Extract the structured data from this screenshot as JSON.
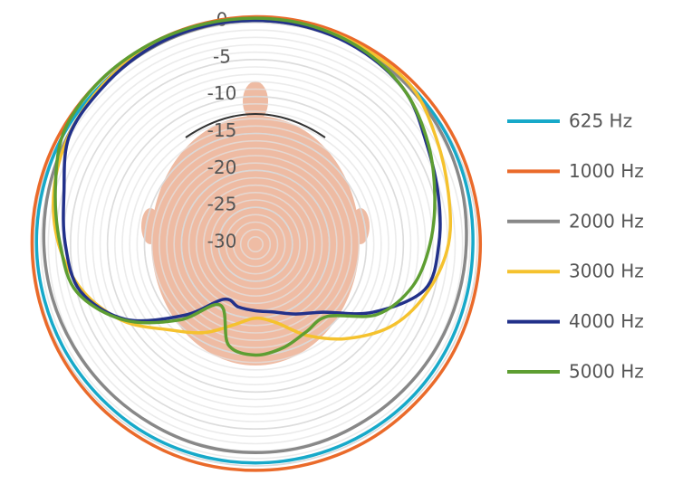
{
  "chart_data": {
    "type": "polar",
    "theta": [
      0,
      15,
      30,
      45,
      60,
      75,
      90,
      105,
      120,
      135,
      150,
      165,
      180,
      195,
      210,
      225,
      240,
      255,
      270,
      285,
      300,
      315,
      330,
      345
    ],
    "rlim": [
      -30,
      0
    ],
    "rticks": [
      0,
      -5,
      -10,
      -15,
      -20,
      -25,
      -30
    ],
    "minor_grid": 1,
    "legend": "right",
    "series": [
      {
        "name": "625 Hz",
        "color": "#17a9c9",
        "values": [
          0.3,
          0.3,
          0.2,
          0,
          -0.2,
          -0.4,
          -0.6,
          -0.6,
          -0.5,
          -0.4,
          -0.4,
          -0.4,
          -0.4,
          -0.4,
          -0.4,
          -0.5,
          -0.5,
          -0.5,
          -0.4,
          -0.3,
          -0.1,
          0,
          0.2,
          0.3
        ]
      },
      {
        "name": "1000 Hz",
        "color": "#ea6a2a",
        "values": [
          0.8,
          0.8,
          0.7,
          0.6,
          0.5,
          0.4,
          0.4,
          0.4,
          0.5,
          0.5,
          0.6,
          0.6,
          0.6,
          0.6,
          0.5,
          0.4,
          0.3,
          0.2,
          0.2,
          0.3,
          0.4,
          0.5,
          0.6,
          0.7
        ]
      },
      {
        "name": "2000 Hz",
        "color": "#888888",
        "values": [
          0.3,
          0.2,
          0,
          -0.3,
          -0.7,
          -1.1,
          -1.5,
          -1.7,
          -1.8,
          -1.9,
          -1.9,
          -1.8,
          -1.8,
          -1.8,
          -1.9,
          -1.9,
          -1.8,
          -1.6,
          -1.4,
          -1.1,
          -0.7,
          -0.3,
          0,
          0.2
        ]
      },
      {
        "name": "3000 Hz",
        "color": "#f5c22e",
        "values": [
          0.6,
          0.5,
          0.3,
          0,
          -1.7,
          -3,
          -3.9,
          -5.8,
          -8.3,
          -12,
          -15.7,
          -19,
          -20,
          -18.7,
          -16.2,
          -13.6,
          -9.3,
          -5.8,
          -3.4,
          -1.8,
          -0.8,
          -0.2,
          0.3,
          0.5
        ]
      },
      {
        "name": "4000 Hz",
        "color": "#22318a",
        "values": [
          0.3,
          0.2,
          -0.2,
          -1.1,
          -3.2,
          -4.4,
          -5.2,
          -6.3,
          -11.6,
          -17,
          -19.1,
          -20.5,
          -21,
          -21.2,
          -21.4,
          -16.4,
          -9.7,
          -5.5,
          -4.3,
          -3.2,
          -0.9,
          -0.4,
          0.1,
          0.3
        ]
      },
      {
        "name": "5000 Hz",
        "color": "#5e9e32",
        "values": [
          0.6,
          0.5,
          0,
          -1.1,
          -3,
          -4.9,
          -6.4,
          -8,
          -11,
          -16.2,
          -16.3,
          -15.5,
          -15,
          -15.9,
          -20.5,
          -15.5,
          -9.5,
          -5,
          -3.6,
          -2,
          0,
          0.5,
          0.6,
          0.6
        ]
      }
    ]
  }
}
